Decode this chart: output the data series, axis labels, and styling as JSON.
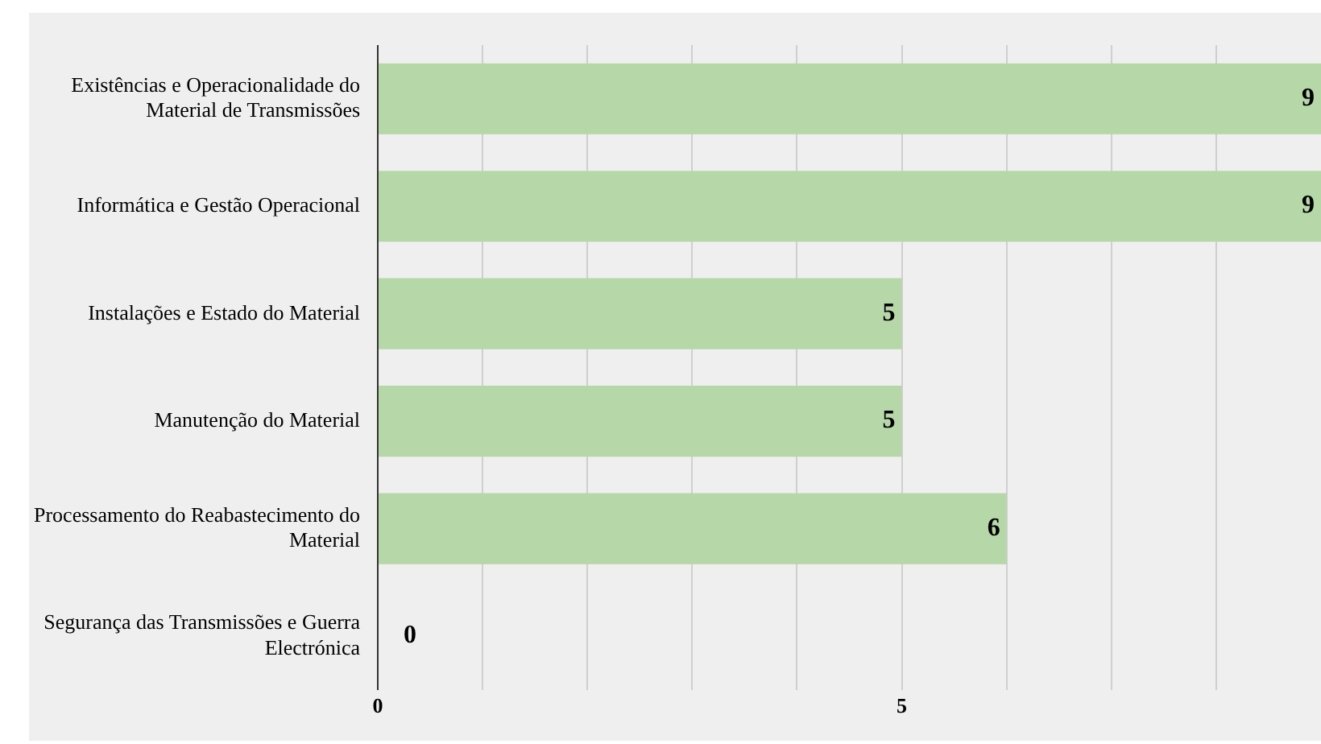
{
  "chart_data": {
    "type": "bar",
    "orientation": "horizontal",
    "categories": [
      "Existências e Operacionalidade do Material de Transmissões",
      "Informática e Gestão Operacional",
      "Instalações e Estado do Material",
      "Manutenção do Material",
      "Processamento do Reabastecimento do Material",
      "Segurança das Transmissões e Guerra Electrónica"
    ],
    "values": [
      9,
      9,
      5,
      5,
      6,
      0
    ],
    "color": "#b6d7a8",
    "xlim": [
      0,
      9
    ],
    "xticks": [
      0,
      {
        "value": 1,
        "label": null
      },
      {
        "value": 2,
        "label": null
      },
      {
        "value": 3,
        "label": null
      },
      {
        "value": 4,
        "label": null
      },
      5,
      {
        "value": 6,
        "label": null
      },
      {
        "value": 7,
        "label": null
      },
      {
        "value": 8,
        "label": null
      }
    ],
    "grid": "x",
    "data_labels": true,
    "legend": false
  }
}
